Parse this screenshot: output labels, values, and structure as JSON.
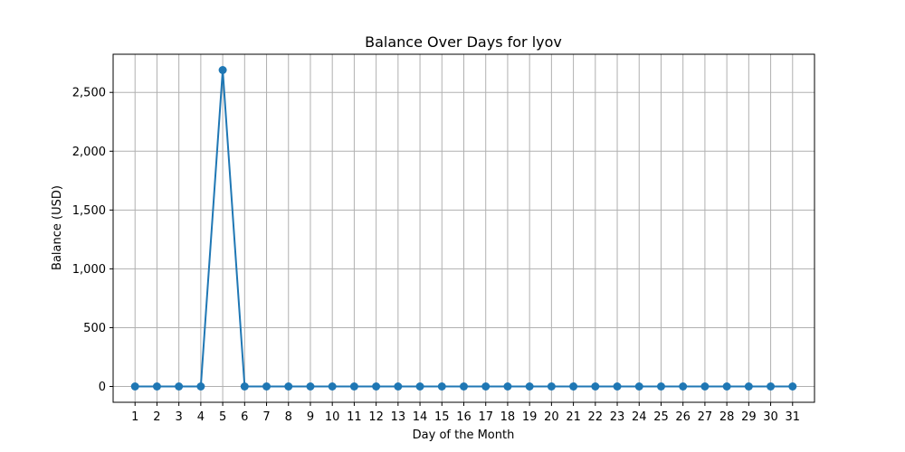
{
  "chart_data": {
    "type": "line",
    "title": "Balance Over Days for lyov",
    "xlabel": "Day of the Month",
    "ylabel": "Balance (USD)",
    "x": [
      1,
      2,
      3,
      4,
      5,
      6,
      7,
      8,
      9,
      10,
      11,
      12,
      13,
      14,
      15,
      16,
      17,
      18,
      19,
      20,
      21,
      22,
      23,
      24,
      25,
      26,
      27,
      28,
      29,
      30,
      31
    ],
    "series": [
      {
        "values": [
          0,
          0,
          0,
          0,
          2690,
          0,
          0,
          0,
          0,
          0,
          0,
          0,
          0,
          0,
          0,
          0,
          0,
          0,
          0,
          0,
          0,
          0,
          0,
          0,
          0,
          0,
          0,
          0,
          0,
          0,
          0
        ],
        "color": "#1f77b4",
        "marker": "circle"
      }
    ],
    "xlim": [
      0.0,
      32.0
    ],
    "ylim": [
      -134.5,
      2824.5
    ],
    "yticks": [
      0,
      500,
      1000,
      1500,
      2000,
      2500
    ],
    "ytick_labels": [
      "0",
      "500",
      "1,000",
      "1,500",
      "2,000",
      "2,500"
    ],
    "grid": true
  }
}
